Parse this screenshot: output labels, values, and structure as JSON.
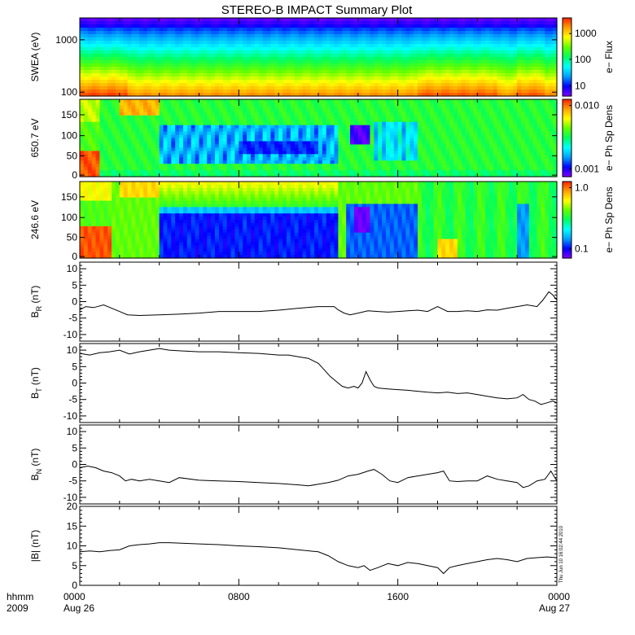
{
  "title": "STEREO-B IMPACT Summary Plot",
  "footer": {
    "left_labels": [
      "hhmm",
      "2009"
    ],
    "x_ticks": [
      {
        "hours": 0,
        "line1": "0000",
        "line2": "Aug 26"
      },
      {
        "hours": 8,
        "line1": "0800",
        "line2": ""
      },
      {
        "hours": 16,
        "line1": "1600",
        "line2": ""
      },
      {
        "hours": 24,
        "line1": "0000",
        "line2": "Aug 27"
      }
    ],
    "timestamp": "Thu Jun 10 16:02:44 2010"
  },
  "colors": {
    "line": "#000000",
    "colormap": [
      "#7f00ff",
      "#0000ff",
      "#00a0ff",
      "#00ffff",
      "#00ff60",
      "#60ff00",
      "#ffff00",
      "#ffa000",
      "#ff2000"
    ]
  },
  "chart_data": [
    {
      "type": "heatmap",
      "ylabel": "SWEA (eV)",
      "y_scale": "log",
      "yticks": [
        "1000",
        "100"
      ],
      "colorbar_label": "e− Flux",
      "colorbar_scale": "log",
      "colorbar_ticks": [
        "1000",
        "100",
        "10"
      ],
      "description_note": "Electron energy spectrogram 100–2000 eV vs time; highest flux (red) at lowest energies, falling to blue/violet at top energies."
    },
    {
      "type": "heatmap",
      "ylabel": "650.7 eV",
      "yticks": [
        "0",
        "50",
        "100",
        "150"
      ],
      "ylim": [
        0,
        180
      ],
      "colorbar_label": "e− Ph Sp Dens",
      "colorbar_scale": "log",
      "colorbar_ticks": [
        "0.010",
        "0.001"
      ]
    },
    {
      "type": "heatmap",
      "ylabel": "246.6 eV",
      "yticks": [
        "0",
        "50",
        "100",
        "150"
      ],
      "ylim": [
        0,
        180
      ],
      "colorbar_label": "e− Ph Sp Dens",
      "colorbar_scale": "log",
      "colorbar_ticks": [
        "1.0",
        "0.1"
      ]
    },
    {
      "type": "line",
      "ylabel": "B_R (nT)",
      "ylabel_main": "B",
      "ylabel_sub": "R",
      "ylabel_unit": "(nT)",
      "ylim": [
        -12,
        12
      ],
      "yticks": [
        -10,
        -5,
        0,
        5,
        10
      ],
      "series": [
        {
          "x_hours": [
            0,
            0.3,
            0.7,
            1.2,
            1.6,
            2.0,
            2.4,
            3.0,
            4.0,
            5.0,
            6.0,
            7.0,
            8.0,
            9.0,
            10.0,
            11.0,
            12.0,
            12.8,
            13.0,
            13.3,
            13.6,
            14.0,
            14.5,
            15.0,
            15.5,
            16.0,
            16.5,
            17.0,
            17.5,
            18.0,
            18.5,
            19.0,
            19.5,
            20.0,
            20.5,
            21.0,
            21.5,
            22.0,
            22.5,
            23.0,
            23.3,
            23.6,
            23.8,
            24.0
          ],
          "values": [
            -2.5,
            -1.5,
            -1.8,
            -1.0,
            -2.0,
            -3.0,
            -4.0,
            -4.2,
            -4.0,
            -3.8,
            -3.5,
            -3.0,
            -3.0,
            -3.0,
            -2.6,
            -2.0,
            -1.5,
            -1.5,
            -2.5,
            -3.5,
            -4.0,
            -3.5,
            -2.8,
            -3.0,
            -3.2,
            -3.0,
            -2.8,
            -2.6,
            -3.0,
            -1.5,
            -3.0,
            -3.0,
            -2.8,
            -3.0,
            -2.5,
            -2.6,
            -2.0,
            -1.5,
            -1.0,
            -1.5,
            0.5,
            3.0,
            2.0,
            0.5
          ]
        }
      ]
    },
    {
      "type": "line",
      "ylabel": "B_T (nT)",
      "ylabel_main": "B",
      "ylabel_sub": "T",
      "ylabel_unit": "(nT)",
      "ylim": [
        -12,
        12
      ],
      "yticks": [
        -10,
        -5,
        0,
        5,
        10
      ],
      "series": [
        {
          "x_hours": [
            0,
            0.5,
            1.0,
            1.5,
            2.0,
            2.5,
            3.0,
            3.5,
            4.0,
            4.5,
            5.0,
            6.0,
            7.0,
            8.0,
            9.0,
            10.0,
            10.5,
            11.0,
            11.5,
            12.0,
            12.3,
            12.6,
            12.9,
            13.2,
            13.5,
            13.8,
            14.0,
            14.2,
            14.4,
            14.6,
            14.8,
            15.0,
            15.5,
            16.0,
            16.5,
            17.0,
            17.5,
            18.0,
            18.5,
            19.0,
            19.5,
            20.0,
            20.5,
            21.0,
            21.5,
            22.0,
            22.3,
            22.6,
            22.9,
            23.2,
            23.5,
            23.8,
            24.0
          ],
          "values": [
            9.0,
            8.5,
            9.2,
            9.5,
            10.0,
            8.8,
            9.5,
            10.0,
            10.5,
            10.0,
            9.8,
            9.5,
            9.5,
            9.2,
            9.0,
            8.5,
            8.5,
            8.0,
            7.5,
            6.0,
            4.0,
            2.0,
            0.5,
            -1.0,
            -1.5,
            -1.0,
            -1.5,
            0.0,
            3.5,
            1.0,
            -1.0,
            -1.5,
            -1.8,
            -2.0,
            -2.2,
            -2.5,
            -2.8,
            -3.0,
            -2.8,
            -3.2,
            -3.0,
            -3.5,
            -4.0,
            -4.5,
            -4.8,
            -4.5,
            -3.5,
            -5.0,
            -5.5,
            -6.5,
            -6.0,
            -5.5,
            -6.0
          ]
        }
      ]
    },
    {
      "type": "line",
      "ylabel": "B_N (nT)",
      "ylabel_main": "B",
      "ylabel_sub": "N",
      "ylabel_unit": "(nT)",
      "ylim": [
        -12,
        12
      ],
      "yticks": [
        -10,
        -5,
        0,
        5,
        10
      ],
      "series": [
        {
          "x_hours": [
            0,
            0.4,
            0.8,
            1.2,
            1.6,
            2.0,
            2.3,
            2.6,
            3.0,
            3.5,
            4.0,
            4.5,
            5.0,
            6.0,
            7.0,
            8.0,
            9.0,
            10.0,
            11.0,
            11.5,
            12.0,
            12.5,
            13.0,
            13.5,
            14.0,
            14.5,
            14.8,
            15.2,
            15.6,
            16.0,
            16.5,
            17.0,
            17.5,
            18.0,
            18.3,
            18.6,
            19.0,
            19.5,
            20.0,
            20.5,
            21.0,
            21.5,
            22.0,
            22.3,
            22.6,
            23.0,
            23.4,
            23.7,
            24.0
          ],
          "values": [
            -1.0,
            -0.5,
            -1.0,
            -2.0,
            -2.5,
            -3.5,
            -5.0,
            -4.5,
            -5.0,
            -4.5,
            -5.0,
            -5.5,
            -4.0,
            -4.8,
            -5.0,
            -5.2,
            -5.5,
            -5.8,
            -6.2,
            -6.5,
            -6.0,
            -5.5,
            -4.8,
            -3.5,
            -3.0,
            -2.0,
            -1.5,
            -3.0,
            -5.0,
            -5.5,
            -4.0,
            -3.5,
            -3.0,
            -2.5,
            -2.0,
            -5.0,
            -5.2,
            -5.0,
            -5.0,
            -3.5,
            -4.5,
            -5.0,
            -5.5,
            -7.0,
            -6.5,
            -5.0,
            -4.5,
            -2.0,
            -5.0
          ]
        }
      ]
    },
    {
      "type": "line",
      "ylabel": "|B| (nT)",
      "ylabel_main": "|B|",
      "ylabel_sub": "",
      "ylabel_unit": "(nT)",
      "ylim": [
        0,
        20
      ],
      "yticks": [
        0,
        5,
        10,
        15,
        20
      ],
      "series": [
        {
          "x_hours": [
            0,
            0.5,
            1.0,
            1.5,
            2.0,
            2.5,
            3.0,
            3.5,
            4.0,
            4.5,
            5.0,
            6.0,
            7.0,
            8.0,
            9.0,
            10.0,
            11.0,
            12.0,
            12.5,
            13.0,
            13.5,
            14.0,
            14.3,
            14.6,
            15.0,
            15.5,
            16.0,
            16.5,
            17.0,
            17.5,
            18.0,
            18.3,
            18.6,
            19.0,
            19.5,
            20.0,
            20.5,
            21.0,
            21.5,
            22.0,
            22.5,
            23.0,
            23.5,
            24.0
          ],
          "values": [
            8.5,
            8.7,
            8.5,
            8.8,
            9.0,
            10.0,
            10.3,
            10.5,
            10.8,
            10.8,
            10.7,
            10.5,
            10.3,
            10.0,
            9.8,
            9.5,
            9.0,
            8.5,
            7.5,
            6.0,
            5.0,
            4.5,
            5.0,
            3.8,
            4.5,
            5.5,
            5.0,
            5.8,
            5.5,
            5.0,
            4.5,
            3.0,
            4.5,
            5.0,
            5.5,
            6.0,
            6.5,
            6.8,
            6.5,
            6.0,
            6.8,
            7.0,
            7.2,
            7.0
          ]
        }
      ]
    }
  ]
}
